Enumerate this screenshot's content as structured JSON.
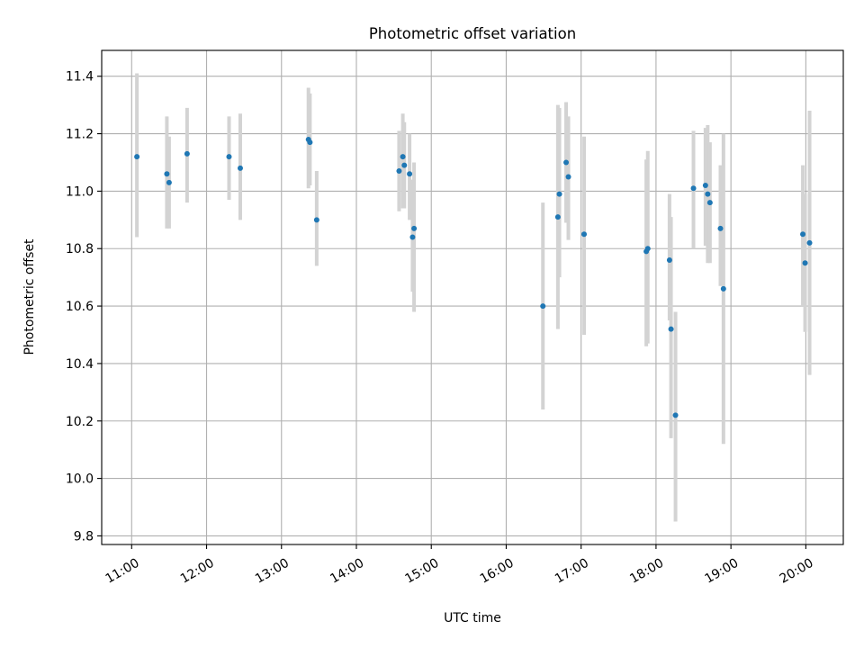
{
  "chart_data": {
    "type": "scatter",
    "title": "Photometric offset variation",
    "xlabel": "UTC time",
    "ylabel": "Photometric offset",
    "x_axis": {
      "unit": "hours UTC",
      "range": [
        10.6,
        20.5
      ],
      "ticks": [
        11,
        12,
        13,
        14,
        15,
        16,
        17,
        18,
        19,
        20
      ],
      "tick_labels": [
        "11:00",
        "12:00",
        "13:00",
        "14:00",
        "15:00",
        "16:00",
        "17:00",
        "18:00",
        "19:00",
        "20:00"
      ],
      "tick_label_rotation": 30
    },
    "y_axis": {
      "range": [
        9.77,
        11.49
      ],
      "ticks": [
        9.8,
        10.0,
        10.2,
        10.4,
        10.6,
        10.8,
        11.0,
        11.2,
        11.4
      ],
      "tick_labels": [
        "9.8",
        "10.0",
        "10.2",
        "10.4",
        "10.6",
        "10.8",
        "11.0",
        "11.2",
        "11.4"
      ]
    },
    "grid": true,
    "marker_color": "#1f77b4",
    "errorbar_color": "#d3d3d3",
    "points": [
      {
        "time": "11:04",
        "x": 11.07,
        "y": 11.12,
        "ylo": 10.84,
        "yhi": 11.41
      },
      {
        "time": "11:28",
        "x": 11.47,
        "y": 11.06,
        "ylo": 10.87,
        "yhi": 11.26
      },
      {
        "time": "11:30",
        "x": 11.5,
        "y": 11.03,
        "ylo": 10.87,
        "yhi": 11.19
      },
      {
        "time": "11:44",
        "x": 11.74,
        "y": 11.13,
        "ylo": 10.96,
        "yhi": 11.29
      },
      {
        "time": "12:18",
        "x": 12.3,
        "y": 11.12,
        "ylo": 10.97,
        "yhi": 11.26
      },
      {
        "time": "12:27",
        "x": 12.45,
        "y": 11.08,
        "ylo": 10.9,
        "yhi": 11.27
      },
      {
        "time": "13:22",
        "x": 13.36,
        "y": 11.18,
        "ylo": 11.01,
        "yhi": 11.36
      },
      {
        "time": "13:23",
        "x": 13.38,
        "y": 11.17,
        "ylo": 11.02,
        "yhi": 11.34
      },
      {
        "time": "13:28",
        "x": 13.47,
        "y": 10.9,
        "ylo": 10.74,
        "yhi": 11.07
      },
      {
        "time": "14:34",
        "x": 14.57,
        "y": 11.07,
        "ylo": 10.93,
        "yhi": 11.21
      },
      {
        "time": "14:37",
        "x": 14.62,
        "y": 11.12,
        "ylo": 10.94,
        "yhi": 11.27
      },
      {
        "time": "14:38",
        "x": 14.64,
        "y": 11.09,
        "ylo": 10.94,
        "yhi": 11.24
      },
      {
        "time": "14:43",
        "x": 14.71,
        "y": 11.06,
        "ylo": 10.9,
        "yhi": 11.2
      },
      {
        "time": "14:45",
        "x": 14.75,
        "y": 10.84,
        "ylo": 10.65,
        "yhi": 11.04
      },
      {
        "time": "14:46",
        "x": 14.77,
        "y": 10.87,
        "ylo": 10.58,
        "yhi": 11.1
      },
      {
        "time": "16:29",
        "x": 16.49,
        "y": 10.6,
        "ylo": 10.24,
        "yhi": 10.96
      },
      {
        "time": "16:41",
        "x": 16.69,
        "y": 10.91,
        "ylo": 10.52,
        "yhi": 11.3
      },
      {
        "time": "16:43",
        "x": 16.71,
        "y": 10.99,
        "ylo": 10.7,
        "yhi": 11.29
      },
      {
        "time": "16:48",
        "x": 16.8,
        "y": 11.1,
        "ylo": 10.89,
        "yhi": 11.31
      },
      {
        "time": "16:50",
        "x": 16.83,
        "y": 11.05,
        "ylo": 10.83,
        "yhi": 11.26
      },
      {
        "time": "17:02",
        "x": 17.04,
        "y": 10.85,
        "ylo": 10.5,
        "yhi": 11.19
      },
      {
        "time": "17:52",
        "x": 17.87,
        "y": 10.79,
        "ylo": 10.46,
        "yhi": 11.11
      },
      {
        "time": "17:53",
        "x": 17.89,
        "y": 10.8,
        "ylo": 10.47,
        "yhi": 11.14
      },
      {
        "time": "18:11",
        "x": 18.18,
        "y": 10.76,
        "ylo": 10.55,
        "yhi": 10.99
      },
      {
        "time": "18:12",
        "x": 18.2,
        "y": 10.52,
        "ylo": 10.14,
        "yhi": 10.91
      },
      {
        "time": "18:16",
        "x": 18.26,
        "y": 10.22,
        "ylo": 9.85,
        "yhi": 10.58
      },
      {
        "time": "18:30",
        "x": 18.5,
        "y": 11.01,
        "ylo": 10.8,
        "yhi": 11.21
      },
      {
        "time": "18:39",
        "x": 18.66,
        "y": 11.02,
        "ylo": 10.81,
        "yhi": 11.22
      },
      {
        "time": "18:41",
        "x": 18.69,
        "y": 10.99,
        "ylo": 10.75,
        "yhi": 11.23
      },
      {
        "time": "18:43",
        "x": 18.72,
        "y": 10.96,
        "ylo": 10.75,
        "yhi": 11.17
      },
      {
        "time": "18:52",
        "x": 18.86,
        "y": 10.87,
        "ylo": 10.67,
        "yhi": 11.09
      },
      {
        "time": "18:54",
        "x": 18.9,
        "y": 10.66,
        "ylo": 10.12,
        "yhi": 11.2
      },
      {
        "time": "19:58",
        "x": 19.96,
        "y": 10.85,
        "ylo": 10.6,
        "yhi": 11.09
      },
      {
        "time": "19:59",
        "x": 19.99,
        "y": 10.75,
        "ylo": 10.51,
        "yhi": 10.99
      },
      {
        "time": "20:03",
        "x": 20.05,
        "y": 10.82,
        "ylo": 10.36,
        "yhi": 11.28
      }
    ]
  }
}
